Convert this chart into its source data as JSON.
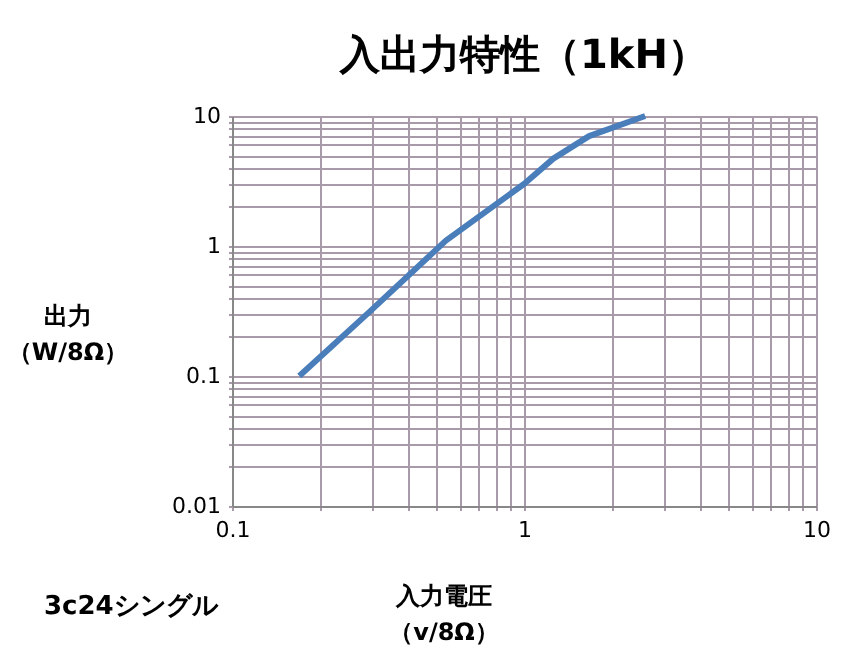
{
  "chart_data": {
    "type": "line",
    "title": "入出力特性（1kH）",
    "xlabel": "入力電圧（v/8Ω）",
    "ylabel": "出力（W/8Ω）",
    "annotations": [
      "3c24シングル"
    ],
    "log": "xy",
    "grid": true,
    "marker": "none",
    "line_style": "solid",
    "x": [
      0.17,
      0.295,
      0.54,
      1.0,
      1.26,
      1.67,
      2.6
    ],
    "series": [
      {
        "color": "#4a7ebb",
        "values": [
          0.1,
          0.31,
          1.1,
          3.0,
          4.7,
          7.0,
          10
        ]
      }
    ],
    "xlim": [
      0.1,
      10
    ],
    "ylim": [
      0.01,
      10
    ],
    "xticks": [
      0.1,
      {
        "value": 0.2,
        "label": null
      },
      {
        "value": 0.3,
        "label": null
      },
      {
        "value": 0.4,
        "label": null
      },
      {
        "value": 0.5,
        "label": null
      },
      {
        "value": 0.6,
        "label": null
      },
      {
        "value": 0.7,
        "label": null
      },
      {
        "value": 0.8,
        "label": null
      },
      {
        "value": 0.9,
        "label": null
      },
      1,
      {
        "value": 2,
        "label": null
      },
      {
        "value": 3,
        "label": null
      },
      {
        "value": 4,
        "label": null
      },
      {
        "value": 5,
        "label": null
      },
      {
        "value": 6,
        "label": null
      },
      {
        "value": 7,
        "label": null
      },
      {
        "value": 8,
        "label": null
      },
      {
        "value": 9,
        "label": null
      },
      10
    ],
    "yticks": [
      0.01,
      {
        "value": 0.02,
        "label": null
      },
      {
        "value": 0.03,
        "label": null
      },
      {
        "value": 0.04,
        "label": null
      },
      {
        "value": 0.05,
        "label": null
      },
      {
        "value": 0.06,
        "label": null
      },
      {
        "value": 0.07,
        "label": null
      },
      {
        "value": 0.08,
        "label": null
      },
      {
        "value": 0.09,
        "label": null
      },
      0.1,
      {
        "value": 0.2,
        "label": null
      },
      {
        "value": 0.3,
        "label": null
      },
      {
        "value": 0.4,
        "label": null
      },
      {
        "value": 0.5,
        "label": null
      },
      {
        "value": 0.6,
        "label": null
      },
      {
        "value": 0.7,
        "label": null
      },
      {
        "value": 0.8,
        "label": null
      },
      {
        "value": 0.9,
        "label": null
      },
      1,
      {
        "value": 2,
        "label": null
      },
      {
        "value": 3,
        "label": null
      },
      {
        "value": 4,
        "label": null
      },
      {
        "value": 5,
        "label": null
      },
      {
        "value": 6,
        "label": null
      },
      {
        "value": 7,
        "label": null
      },
      {
        "value": 8,
        "label": null
      },
      {
        "value": 9,
        "label": null
      },
      10
    ]
  }
}
